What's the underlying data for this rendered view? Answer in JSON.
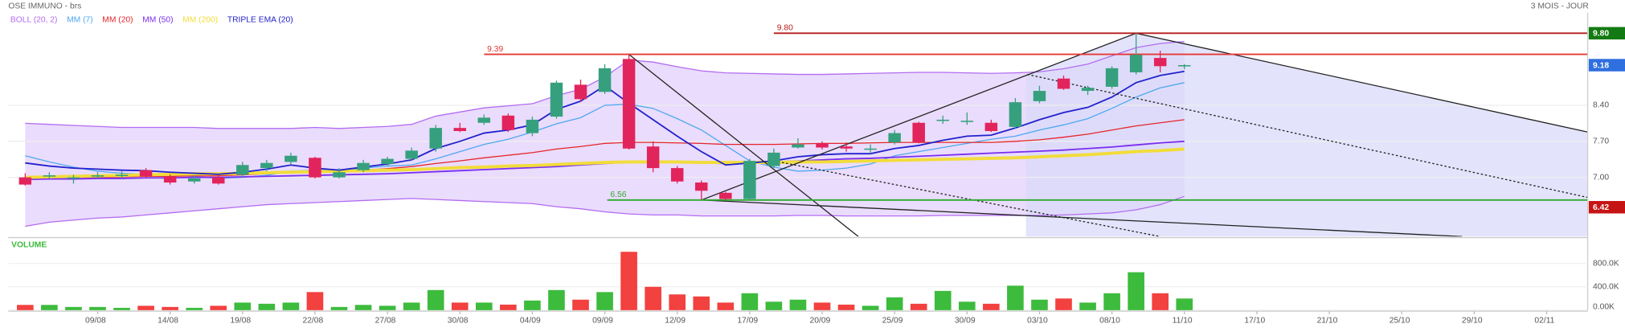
{
  "title": "OSE IMMUNO - brs",
  "period": "3 MOIS - JOUR",
  "chart_data": [
    {
      "type": "candlestick",
      "up_color": "#36a07e",
      "down_color": "#e2245c",
      "x": [
        0,
        1,
        2,
        3,
        4,
        5,
        6,
        7,
        8,
        9,
        10,
        11,
        12,
        13,
        14,
        15,
        16,
        17,
        18,
        19,
        20,
        21,
        22,
        23,
        24,
        25,
        26,
        27,
        28,
        29,
        30,
        31,
        32,
        33,
        34,
        35,
        36,
        37,
        38,
        39,
        40,
        41,
        42,
        43,
        44,
        45,
        46,
        47,
        48
      ],
      "open": [
        7.0,
        7.02,
        6.98,
        7.02,
        7.03,
        7.14,
        7.02,
        6.92,
        7.0,
        7.05,
        7.18,
        7.3,
        7.38,
        7.0,
        7.14,
        7.26,
        7.36,
        7.56,
        7.96,
        8.06,
        8.2,
        7.86,
        8.18,
        8.8,
        8.66,
        9.3,
        7.6,
        7.18,
        6.9,
        6.7,
        6.58,
        7.22,
        7.58,
        7.66,
        7.6,
        7.54,
        7.68,
        8.06,
        8.1,
        8.08,
        8.06,
        7.98,
        8.48,
        8.92,
        8.68,
        8.76,
        9.04,
        9.32,
        9.16
      ],
      "high": [
        7.08,
        7.1,
        7.05,
        7.1,
        7.12,
        7.18,
        7.06,
        7.04,
        7.04,
        7.3,
        7.34,
        7.48,
        7.4,
        7.18,
        7.34,
        7.4,
        7.58,
        8.02,
        8.06,
        8.22,
        8.24,
        8.18,
        8.88,
        8.9,
        9.2,
        9.39,
        7.7,
        7.22,
        6.94,
        6.72,
        7.36,
        7.56,
        7.76,
        7.7,
        7.68,
        7.64,
        7.92,
        8.08,
        8.2,
        8.26,
        8.12,
        8.54,
        8.78,
        8.98,
        8.78,
        9.16,
        9.8,
        9.46,
        9.2
      ],
      "low": [
        6.84,
        6.98,
        6.88,
        6.98,
        6.98,
        6.98,
        6.86,
        6.88,
        6.86,
        7.0,
        7.12,
        7.26,
        6.98,
        6.98,
        7.1,
        7.22,
        7.32,
        7.5,
        7.88,
        8.02,
        7.88,
        7.8,
        8.14,
        8.46,
        8.62,
        7.54,
        7.1,
        6.88,
        6.56,
        6.56,
        6.56,
        7.18,
        7.56,
        7.54,
        7.5,
        7.46,
        7.64,
        7.66,
        8.04,
        8.02,
        7.88,
        7.94,
        8.44,
        8.7,
        8.6,
        8.72,
        9.0,
        9.04,
        9.1
      ],
      "close": [
        6.86,
        7.04,
        7.0,
        7.04,
        7.05,
        7.02,
        6.9,
        6.98,
        6.88,
        7.24,
        7.28,
        7.42,
        7.0,
        7.1,
        7.28,
        7.36,
        7.52,
        7.96,
        7.9,
        8.16,
        7.92,
        8.12,
        8.84,
        8.52,
        9.12,
        7.56,
        7.18,
        6.92,
        6.74,
        6.58,
        7.32,
        7.48,
        7.64,
        7.58,
        7.56,
        7.56,
        7.86,
        7.68,
        8.12,
        8.1,
        7.9,
        8.46,
        8.68,
        8.72,
        8.74,
        9.12,
        9.38,
        9.16,
        9.18
      ],
      "series": [
        {
          "name": "BOLL (20, 2)",
          "color": "#b36cf2",
          "fill": "#e6d6fb",
          "upper": [
            8.05,
            8.03,
            8.01,
            7.99,
            7.97,
            7.97,
            7.97,
            7.97,
            7.95,
            7.95,
            7.95,
            7.95,
            7.97,
            7.95,
            7.97,
            7.99,
            8.03,
            8.19,
            8.27,
            8.35,
            8.39,
            8.43,
            8.59,
            8.71,
            8.95,
            9.28,
            9.24,
            9.15,
            9.07,
            9.03,
            9.02,
            9.01,
            9.0,
            9.0,
            9.01,
            9.02,
            9.03,
            9.04,
            9.04,
            9.03,
            9.02,
            9.03,
            9.05,
            9.11,
            9.2,
            9.36,
            9.52,
            9.6,
            9.64
          ],
          "lower": [
            6.05,
            6.13,
            6.17,
            6.21,
            6.23,
            6.27,
            6.31,
            6.35,
            6.39,
            6.43,
            6.47,
            6.49,
            6.51,
            6.53,
            6.55,
            6.57,
            6.59,
            6.57,
            6.55,
            6.53,
            6.51,
            6.49,
            6.43,
            6.39,
            6.33,
            6.29,
            6.27,
            6.27,
            6.25,
            6.25,
            6.25,
            6.25,
            6.26,
            6.26,
            6.25,
            6.25,
            6.25,
            6.25,
            6.26,
            6.26,
            6.26,
            6.26,
            6.26,
            6.27,
            6.29,
            6.31,
            6.37,
            6.47,
            6.63
          ]
        },
        {
          "name": "MM (7)",
          "color": "#4ea8f0",
          "values": [
            7.42,
            7.3,
            7.2,
            7.12,
            7.08,
            7.06,
            7.04,
            7.02,
            6.98,
            7.0,
            7.04,
            7.12,
            7.14,
            7.14,
            7.18,
            7.22,
            7.24,
            7.36,
            7.5,
            7.64,
            7.74,
            7.88,
            8.04,
            8.16,
            8.4,
            8.42,
            8.34,
            8.14,
            7.92,
            7.62,
            7.32,
            7.2,
            7.12,
            7.14,
            7.18,
            7.26,
            7.42,
            7.5,
            7.58,
            7.66,
            7.74,
            7.8,
            7.92,
            8.02,
            8.14,
            8.34,
            8.56,
            8.74,
            8.84
          ]
        },
        {
          "name": "MM (20)",
          "color": "#e5252b",
          "values": [
            6.98,
            6.99,
            7.0,
            7.0,
            7.01,
            7.02,
            7.02,
            7.03,
            7.03,
            7.05,
            7.07,
            7.09,
            7.1,
            7.12,
            7.14,
            7.17,
            7.21,
            7.27,
            7.32,
            7.38,
            7.43,
            7.48,
            7.55,
            7.6,
            7.66,
            7.68,
            7.68,
            7.67,
            7.66,
            7.64,
            7.64,
            7.64,
            7.65,
            7.66,
            7.66,
            7.67,
            7.68,
            7.68,
            7.68,
            7.68,
            7.68,
            7.7,
            7.73,
            7.78,
            7.84,
            7.92,
            8.0,
            8.06,
            8.12
          ]
        },
        {
          "name": "MM (50)",
          "color": "#7a2ef0",
          "values": [
            6.96,
            6.97,
            6.97,
            6.98,
            6.98,
            6.99,
            6.99,
            7.0,
            7.0,
            7.01,
            7.02,
            7.03,
            7.04,
            7.05,
            7.06,
            7.07,
            7.09,
            7.11,
            7.13,
            7.15,
            7.17,
            7.19,
            7.21,
            7.24,
            7.27,
            7.3,
            7.3,
            7.29,
            7.28,
            7.27,
            7.28,
            7.3,
            7.32,
            7.34,
            7.36,
            7.37,
            7.39,
            7.41,
            7.43,
            7.45,
            7.47,
            7.49,
            7.51,
            7.53,
            7.56,
            7.59,
            7.63,
            7.67,
            7.7
          ]
        },
        {
          "name": "MM (200)",
          "color": "#f2dc3a",
          "values": [
            7.0,
            7.01,
            7.02,
            7.03,
            7.04,
            7.05,
            7.06,
            7.07,
            7.07,
            7.08,
            7.09,
            7.1,
            7.11,
            7.12,
            7.13,
            7.14,
            7.15,
            7.17,
            7.19,
            7.2,
            7.22,
            7.23,
            7.25,
            7.27,
            7.29,
            7.3,
            7.3,
            7.3,
            7.29,
            7.29,
            7.29,
            7.29,
            7.3,
            7.3,
            7.31,
            7.32,
            7.33,
            7.34,
            7.35,
            7.36,
            7.37,
            7.38,
            7.4,
            7.42,
            7.44,
            7.47,
            7.5,
            7.52,
            7.55
          ]
        },
        {
          "name": "TRIPLE EMA (20)",
          "color": "#2222cc",
          "values": [
            7.28,
            7.22,
            7.18,
            7.16,
            7.14,
            7.13,
            7.1,
            7.08,
            7.06,
            7.1,
            7.16,
            7.24,
            7.18,
            7.14,
            7.2,
            7.26,
            7.34,
            7.56,
            7.7,
            7.86,
            7.92,
            8.02,
            8.32,
            8.48,
            8.78,
            8.44,
            8.12,
            7.8,
            7.5,
            7.24,
            7.28,
            7.32,
            7.4,
            7.44,
            7.46,
            7.46,
            7.56,
            7.62,
            7.72,
            7.8,
            7.82,
            7.96,
            8.12,
            8.26,
            8.36,
            8.56,
            8.84,
            8.98,
            9.06
          ]
        }
      ],
      "levels": [
        {
          "value": 9.39,
          "label": "9.39",
          "color": "#e53935",
          "from": 19
        },
        {
          "value": 9.8,
          "label": "9.80",
          "color": "#b71c1c",
          "from": 31
        },
        {
          "value": 6.56,
          "label": "6.56",
          "color": "#2eaa2e",
          "from": 24.1
        }
      ],
      "markers": [
        {
          "value": 9.8,
          "label": "9.80",
          "color": "#137a13"
        },
        {
          "value": 9.18,
          "label": "9.18",
          "color": "#2f6fe0"
        },
        {
          "value": 6.42,
          "label": "6.42",
          "color": "#c61414"
        }
      ],
      "trendlines": [
        {
          "points": [
            [
              28,
              6.56
            ],
            [
              46,
              9.8
            ]
          ],
          "dashed": false
        },
        {
          "points": [
            [
              25,
              9.39
            ],
            [
              34.5,
              5.85
            ]
          ],
          "dashed": false
        },
        {
          "points": [
            [
              46,
              9.8
            ],
            [
              64.7,
              7.88
            ]
          ],
          "dashed": false
        },
        {
          "points": [
            [
              28,
              6.56
            ],
            [
              59.5,
              5.85
            ]
          ],
          "dashed": false
        },
        {
          "points": [
            [
              41.5,
              9.0
            ],
            [
              64.7,
              6.61
            ]
          ],
          "dashed": true
        },
        {
          "points": [
            [
              31,
              7.32
            ],
            [
              47,
              5.85
            ]
          ],
          "dashed": true
        }
      ],
      "xlim": [
        -0.7,
        64.7
      ],
      "ylim": [
        5.85,
        10.2
      ],
      "yticks": [
        {
          "value": 7.0,
          "label": "7.00"
        },
        {
          "value": 7.7,
          "label": "7.70"
        },
        {
          "value": 8.4,
          "label": "8.40"
        }
      ],
      "grid": true
    },
    {
      "type": "bar",
      "title": "VOLUME",
      "up_color": "#3dbb3d",
      "down_color": "#f2413f",
      "values": [
        90000,
        90000,
        55000,
        55000,
        40000,
        75000,
        55000,
        40000,
        75000,
        130000,
        110000,
        130000,
        310000,
        55000,
        90000,
        75000,
        130000,
        345000,
        130000,
        130000,
        95000,
        165000,
        345000,
        180000,
        310000,
        1000000,
        400000,
        270000,
        235000,
        130000,
        290000,
        145000,
        180000,
        130000,
        95000,
        75000,
        220000,
        110000,
        330000,
        145000,
        110000,
        420000,
        180000,
        200000,
        130000,
        290000,
        650000,
        290000,
        200000
      ],
      "xlim": [
        -0.7,
        64.7
      ],
      "ylim": [
        0,
        1190000
      ],
      "yticks": [
        {
          "value": 0,
          "label": "0.00K"
        },
        {
          "value": 400000,
          "label": "400.0K"
        },
        {
          "value": 800000,
          "label": "800.0K"
        }
      ],
      "xticks": [
        {
          "value": 3,
          "label": "09/08"
        },
        {
          "value": 6,
          "label": "14/08"
        },
        {
          "value": 9,
          "label": "19/08"
        },
        {
          "value": 12,
          "label": "22/08"
        },
        {
          "value": 15,
          "label": "27/08"
        },
        {
          "value": 18,
          "label": "30/08"
        },
        {
          "value": 21,
          "label": "04/09"
        },
        {
          "value": 24,
          "label": "09/09"
        },
        {
          "value": 27,
          "label": "12/09"
        },
        {
          "value": 30,
          "label": "17/09"
        },
        {
          "value": 33,
          "label": "20/09"
        },
        {
          "value": 36,
          "label": "25/09"
        },
        {
          "value": 39,
          "label": "30/09"
        },
        {
          "value": 42,
          "label": "03/10"
        },
        {
          "value": 45,
          "label": "08/10"
        },
        {
          "value": 48,
          "label": "11/10"
        },
        {
          "value": 51,
          "label": "17/10"
        },
        {
          "value": 54,
          "label": "21/10"
        },
        {
          "value": 57,
          "label": "25/10"
        },
        {
          "value": 60,
          "label": "29/10"
        },
        {
          "value": 63,
          "label": "02/11"
        }
      ]
    }
  ]
}
